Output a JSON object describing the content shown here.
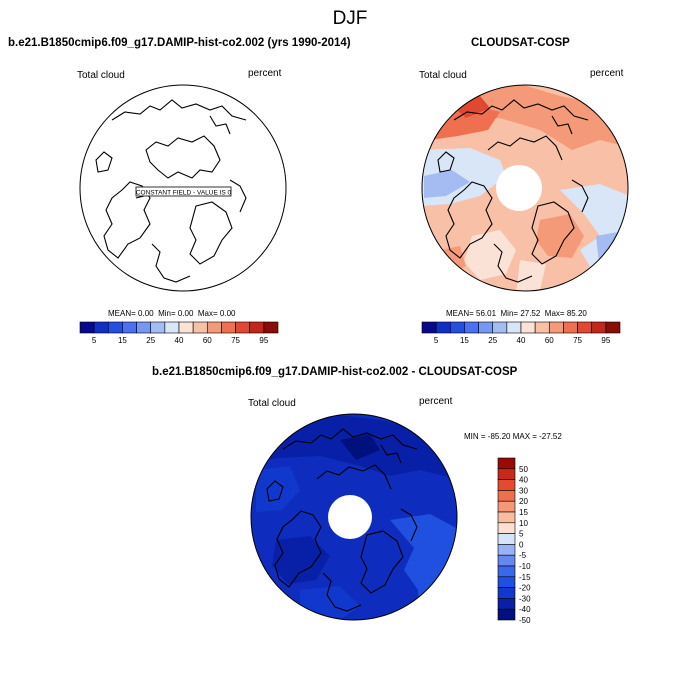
{
  "figure": {
    "title": "DJF"
  },
  "chart_data": [
    {
      "type": "heatmap",
      "projection": "polar-stereographic",
      "title": "b.e21.B1850cmip6.f09_g17.DAMIP-hist-co2.002 (yrs 1990-2014)",
      "left_label": "Total cloud",
      "right_label": "percent",
      "annotation": "CONSTANT FIELD - VALUE IS 0",
      "stats": {
        "mean_label": "MEAN=",
        "mean": "0.00",
        "min_label": "Min=",
        "min": "0.00",
        "max_label": "Max=",
        "max": "0.00"
      },
      "colorbar": {
        "orientation": "horizontal",
        "levels": [
          5,
          10,
          15,
          20,
          25,
          30,
          40,
          50,
          60,
          70,
          75,
          80,
          90,
          95
        ],
        "tick_labels": [
          "5",
          "15",
          "25",
          "40",
          "60",
          "75",
          "95"
        ]
      }
    },
    {
      "type": "heatmap",
      "projection": "polar-stereographic",
      "title": "CLOUDSAT-COSP",
      "left_label": "Total cloud",
      "right_label": "percent",
      "stats": {
        "mean_label": "MEAN=",
        "mean": "56.01",
        "min_label": "Min=",
        "min": "27.52",
        "max_label": "Max=",
        "max": "85.20"
      },
      "colorbar": {
        "orientation": "horizontal",
        "levels": [
          5,
          10,
          15,
          20,
          25,
          30,
          40,
          50,
          60,
          70,
          75,
          80,
          90,
          95
        ],
        "tick_labels": [
          "5",
          "15",
          "25",
          "40",
          "60",
          "75",
          "95"
        ]
      }
    },
    {
      "type": "heatmap",
      "projection": "polar-stereographic",
      "title": "b.e21.B1850cmip6.f09_g17.DAMIP-hist-co2.002 - CLOUDSAT-COSP",
      "left_label": "Total cloud",
      "right_label": "percent",
      "range_text": "MIN = -85.20 MAX = -27.52",
      "colorbar": {
        "orientation": "vertical",
        "levels": [
          -50,
          -40,
          -30,
          -20,
          -15,
          -10,
          -5,
          0,
          5,
          10,
          15,
          20,
          30,
          40,
          50
        ],
        "tick_labels": [
          "50",
          "40",
          "30",
          "20",
          "15",
          "10",
          "5",
          "0",
          "-5",
          "-10",
          "-15",
          "-20",
          "-30",
          "-40",
          "-50"
        ]
      }
    }
  ],
  "colors": {
    "ramp": [
      "#08088c",
      "#1030c4",
      "#2450e0",
      "#4a72ee",
      "#7898f0",
      "#a4bcf2",
      "#d8e6f8",
      "#fbe2d6",
      "#f8c0a6",
      "#f49a78",
      "#ee704e",
      "#e04830",
      "#c02818",
      "#8a0c08"
    ],
    "diff_ramp": [
      "#00107c",
      "#0820a8",
      "#1038cc",
      "#2050e0",
      "#3a68ec",
      "#6488f0",
      "#98b2f4",
      "#d6e4f8",
      "#fbe0d2",
      "#f8bca0",
      "#f49878",
      "#ef7050",
      "#e44a30",
      "#c82a18",
      "#9a0a04"
    ],
    "ocean_model": "#ffffff",
    "diff_fill": "#0e2dbe"
  }
}
